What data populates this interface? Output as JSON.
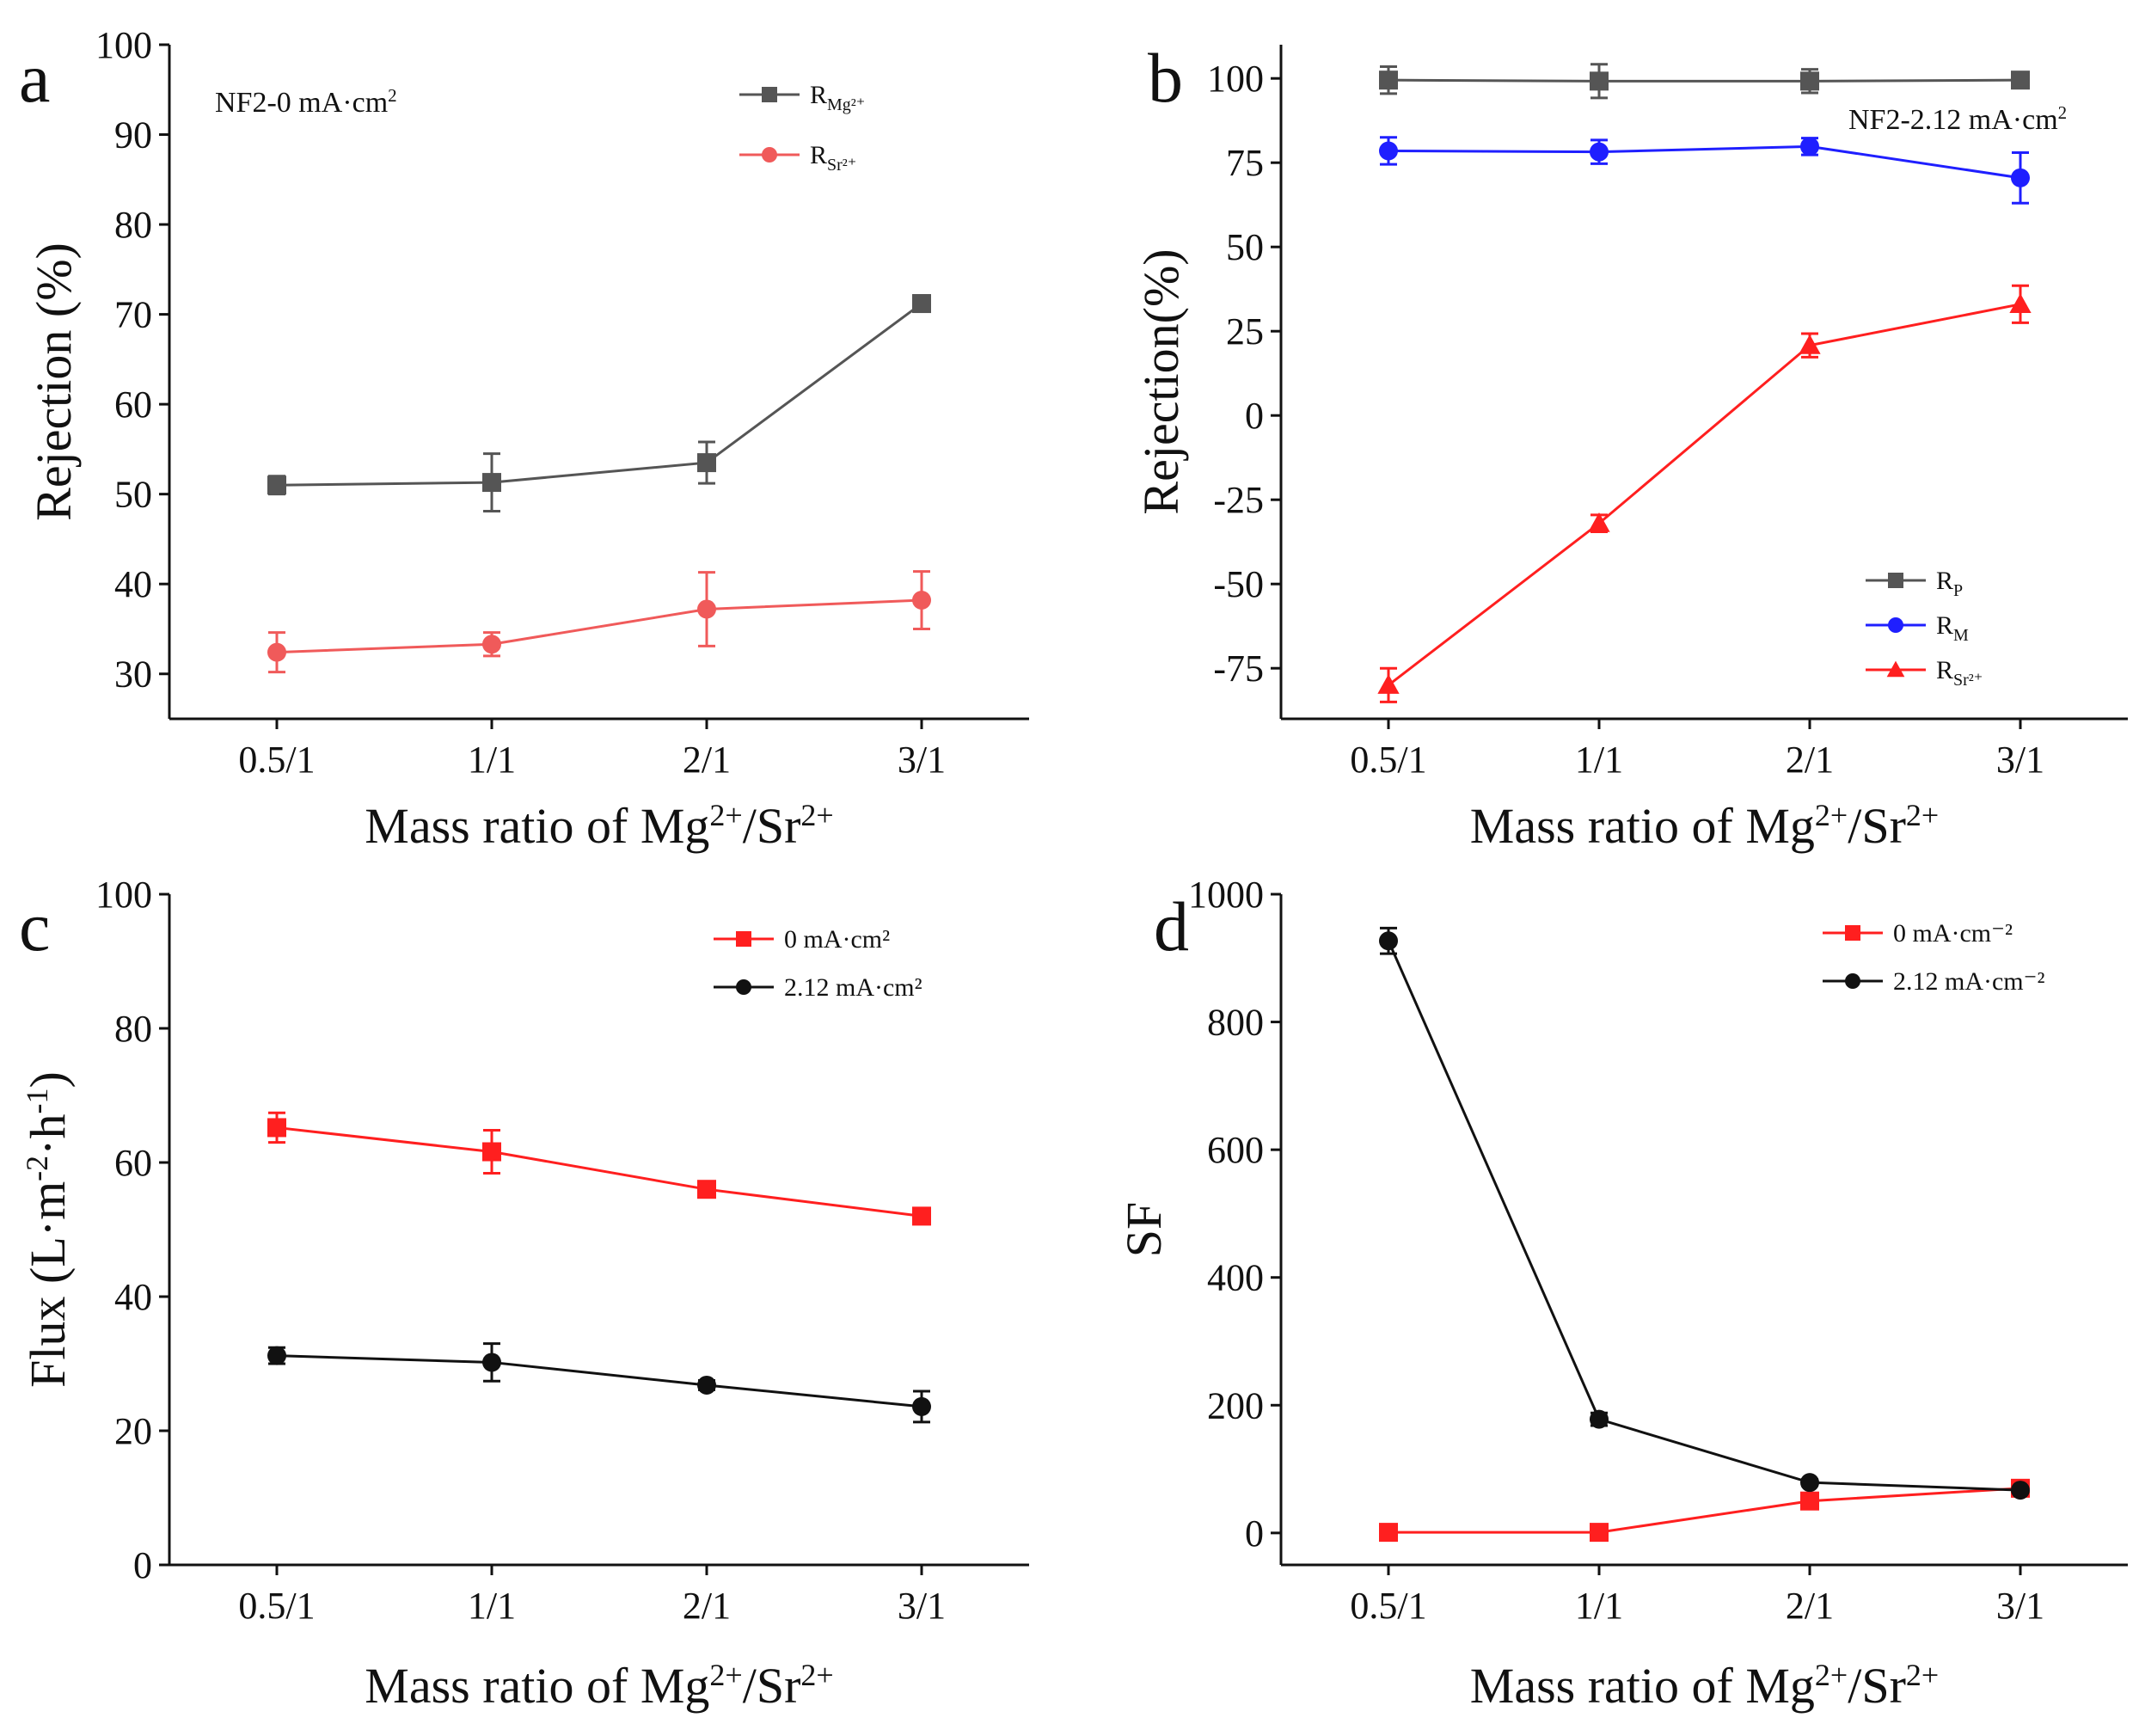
{
  "chart_data": [
    {
      "panel": "a",
      "type": "line",
      "title": "",
      "annotation": "NF2-0 mA·cm²",
      "categories": [
        "0.5/1",
        "1/1",
        "2/1",
        "3/1"
      ],
      "xlabel": "Mass ratio of Mg²⁺/Sr²⁺",
      "ylabel": "Rejection (%)",
      "ylim": [
        25,
        100
      ],
      "yticks": [
        30,
        40,
        50,
        60,
        70,
        80,
        90,
        100
      ],
      "legend_position": "top-right",
      "series": [
        {
          "name": "R",
          "sub": "Mg²⁺",
          "color": "#555555",
          "marker": "square",
          "values": [
            51.0,
            51.3,
            53.5,
            71.2
          ],
          "errors": [
            1.0,
            3.2,
            2.3,
            0.9
          ]
        },
        {
          "name": "R",
          "sub": "Sr²⁺",
          "color": "#f05a5a",
          "marker": "circle",
          "values": [
            32.4,
            33.3,
            37.2,
            38.2
          ],
          "errors": [
            2.2,
            1.3,
            4.1,
            3.2
          ]
        }
      ]
    },
    {
      "panel": "b",
      "type": "line",
      "title": "",
      "annotation": "NF2-2.12 mA·cm²",
      "categories": [
        "0.5/1",
        "1/1",
        "2/1",
        "3/1"
      ],
      "xlabel": "Mass ratio of Mg²⁺/Sr²⁺",
      "ylabel": "Rejection(%)",
      "ylim": [
        -90,
        110
      ],
      "yticks": [
        -75,
        -50,
        -25,
        0,
        25,
        50,
        75,
        100
      ],
      "legend_position": "bottom-right",
      "series": [
        {
          "name": "R",
          "sub": "P",
          "color": "#555555",
          "marker": "square",
          "values": [
            99.5,
            99.2,
            99.2,
            99.5
          ],
          "errors": [
            4.0,
            5.0,
            3.5,
            1.5
          ]
        },
        {
          "name": "R",
          "sub": "M",
          "color": "#1f1fff",
          "marker": "circle",
          "values": [
            78.5,
            78.2,
            79.8,
            70.5
          ],
          "errors": [
            4.0,
            3.5,
            2.5,
            7.5
          ]
        },
        {
          "name": "R",
          "sub": "Sr²⁺",
          "color": "#ff1f1f",
          "marker": "triangle",
          "values": [
            -80.0,
            -32.0,
            20.8,
            33.0
          ],
          "errors": [
            5.0,
            2.5,
            3.5,
            5.5
          ]
        }
      ]
    },
    {
      "panel": "c",
      "type": "line",
      "title": "",
      "categories": [
        "0.5/1",
        "1/1",
        "2/1",
        "3/1"
      ],
      "xlabel": "Mass ratio of Mg²⁺/Sr²⁺",
      "ylabel": "Flux (L·m⁻²·h⁻¹)",
      "ylim": [
        0,
        100
      ],
      "yticks": [
        0,
        20,
        40,
        60,
        80,
        100
      ],
      "legend_position": "top-right",
      "series": [
        {
          "name": "0 mA·cm²",
          "color": "#ff1f1f",
          "marker": "square",
          "values": [
            65.2,
            61.6,
            56.0,
            52.0
          ],
          "errors": [
            2.2,
            3.2,
            0.8,
            0.6
          ]
        },
        {
          "name": "2.12 mA·cm²",
          "color": "#111111",
          "marker": "circle",
          "values": [
            31.2,
            30.2,
            26.8,
            23.6
          ],
          "errors": [
            1.2,
            2.8,
            0.7,
            2.3
          ]
        }
      ]
    },
    {
      "panel": "d",
      "type": "line",
      "title": "",
      "categories": [
        "0.5/1",
        "1/1",
        "2/1",
        "3/1"
      ],
      "xlabel": "Mass ratio of Mg²⁺/Sr²⁺",
      "ylabel": "SF",
      "ylim": [
        -50,
        1000
      ],
      "yticks": [
        0,
        200,
        400,
        600,
        800,
        1000
      ],
      "legend_position": "top-right",
      "series": [
        {
          "name": "0 mA·cm⁻²",
          "color": "#ff1f1f",
          "marker": "square",
          "values": [
            1,
            1,
            50,
            70
          ],
          "errors": [
            0,
            0,
            4,
            5
          ]
        },
        {
          "name": "2.12 mA·cm⁻²",
          "color": "#111111",
          "marker": "circle",
          "values": [
            927,
            178,
            79,
            67
          ],
          "errors": [
            20,
            10,
            5,
            4
          ]
        }
      ]
    }
  ]
}
